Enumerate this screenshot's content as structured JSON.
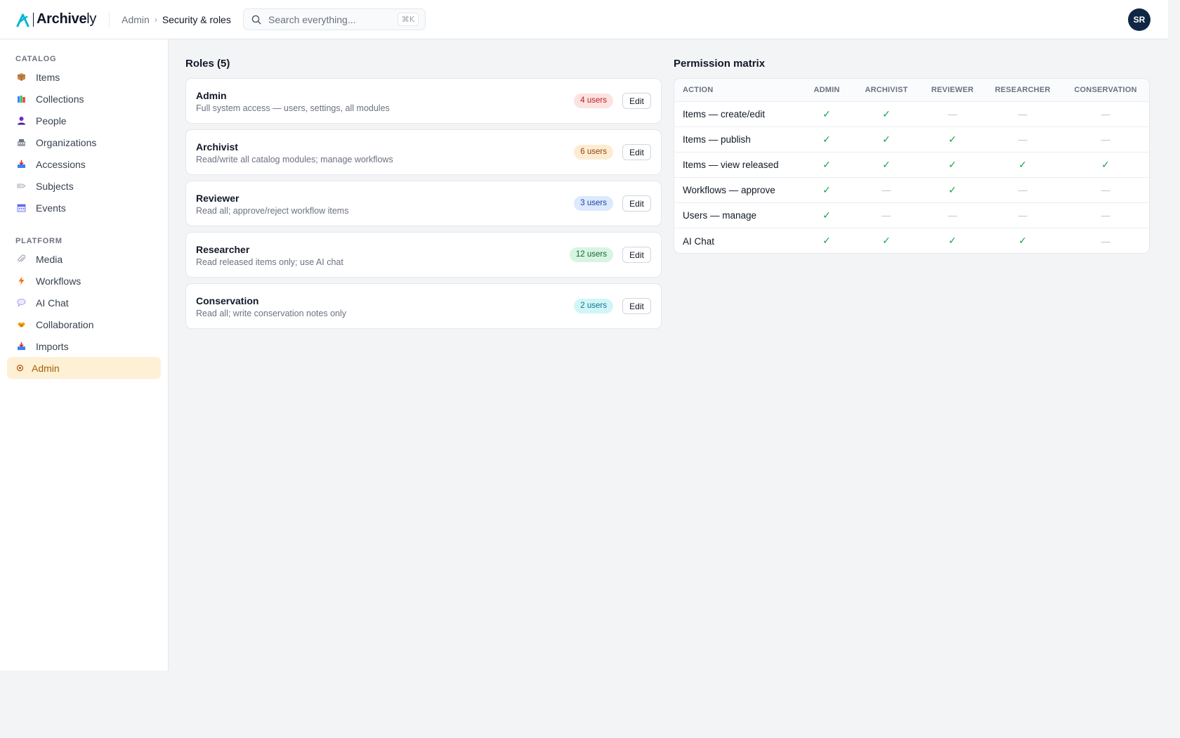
{
  "app": {
    "logo_bold": "Archive",
    "logo_light": "ly",
    "brand_color": "#06b6d4"
  },
  "header": {
    "breadcrumb": {
      "parent": "Admin",
      "current": "Security & roles"
    },
    "search": {
      "placeholder": "Search everything...",
      "shortcut": "⌘K"
    },
    "avatar_initials": "SR"
  },
  "sidebar": {
    "catalog_label": "CATALOG",
    "catalog_items": [
      {
        "label": "Items",
        "icon": "package-icon"
      },
      {
        "label": "Collections",
        "icon": "books-icon"
      },
      {
        "label": "People",
        "icon": "person-icon"
      },
      {
        "label": "Organizations",
        "icon": "building-icon"
      },
      {
        "label": "Accessions",
        "icon": "inbox-icon"
      },
      {
        "label": "Subjects",
        "icon": "tag-icon"
      },
      {
        "label": "Events",
        "icon": "calendar-icon"
      }
    ],
    "platform_label": "PLATFORM",
    "platform_items": [
      {
        "label": "Media",
        "icon": "paperclip-icon"
      },
      {
        "label": "Workflows",
        "icon": "lightning-icon"
      },
      {
        "label": "AI Chat",
        "icon": "speech-bubble-icon"
      },
      {
        "label": "Collaboration",
        "icon": "handshake-icon"
      },
      {
        "label": "Imports",
        "icon": "import-tray-icon"
      },
      {
        "label": "Admin",
        "icon": "gear-icon",
        "active": true
      }
    ]
  },
  "roles": {
    "title": "Roles (5)",
    "edit_label": "Edit",
    "items": [
      {
        "name": "Admin",
        "description": "Full system access — users, settings, all modules",
        "users": "4 users",
        "badge_bg": "#fde2e2",
        "badge_fg": "#b91c1c"
      },
      {
        "name": "Archivist",
        "description": "Read/write all catalog modules; manage workflows",
        "users": "6 users",
        "badge_bg": "#fdecd2",
        "badge_fg": "#92400e"
      },
      {
        "name": "Reviewer",
        "description": "Read all; approve/reject workflow items",
        "users": "3 users",
        "badge_bg": "#dde9fc",
        "badge_fg": "#1e40af"
      },
      {
        "name": "Researcher",
        "description": "Read released items only; use AI chat",
        "users": "12 users",
        "badge_bg": "#d7f5e2",
        "badge_fg": "#166534"
      },
      {
        "name": "Conservation",
        "description": "Read all; write conservation notes only",
        "users": "2 users",
        "badge_bg": "#d2f6f8",
        "badge_fg": "#0e7490"
      }
    ]
  },
  "matrix": {
    "title": "Permission matrix",
    "headers": [
      "ACTION",
      "ADMIN",
      "ARCHIVIST",
      "REVIEWER",
      "RESEARCHER",
      "CONSERVATION"
    ],
    "yes_glyph": "✓",
    "no_glyph": "—",
    "rows": [
      {
        "action": "Items — create/edit",
        "perms": [
          true,
          true,
          false,
          false,
          false
        ]
      },
      {
        "action": "Items — publish",
        "perms": [
          true,
          true,
          true,
          false,
          false
        ]
      },
      {
        "action": "Items — view released",
        "perms": [
          true,
          true,
          true,
          true,
          true
        ]
      },
      {
        "action": "Workflows — approve",
        "perms": [
          true,
          false,
          true,
          false,
          false
        ]
      },
      {
        "action": "Users — manage",
        "perms": [
          true,
          false,
          false,
          false,
          false
        ]
      },
      {
        "action": "AI Chat",
        "perms": [
          true,
          true,
          true,
          true,
          false
        ]
      }
    ]
  }
}
